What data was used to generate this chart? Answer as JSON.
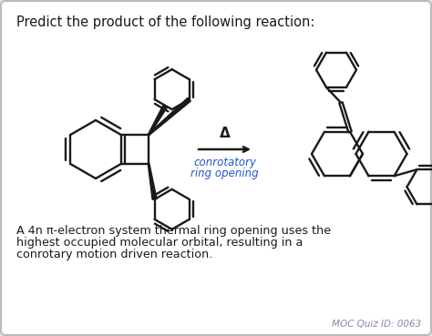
{
  "bg_color": "#e8e8e8",
  "card_color": "#ffffff",
  "border_color": "#bbbbbb",
  "title_text": "Predict the product of the following reaction:",
  "title_color": "#1a1a1a",
  "title_fontsize": 10.5,
  "arrow_label_top": "Δ",
  "arrow_label_bottom_line1": "conrotatory",
  "arrow_label_bottom_line2": "ring opening",
  "arrow_label_color": "#2255cc",
  "arrow_color": "#1a1a1a",
  "footer_text": "MOC Quiz ID: 0063",
  "footer_color": "#8888aa",
  "body_text_line1": "A 4n π-electron system thermal ring opening uses the",
  "body_text_line2": "highest occupied molecular orbital, resulting in a",
  "body_text_line3": "conrotary motion driven reaction.",
  "body_color": "#1a1a1a",
  "body_fontsize": 9.2,
  "mol_color": "#1a1a1a",
  "mol_lw": 1.7
}
